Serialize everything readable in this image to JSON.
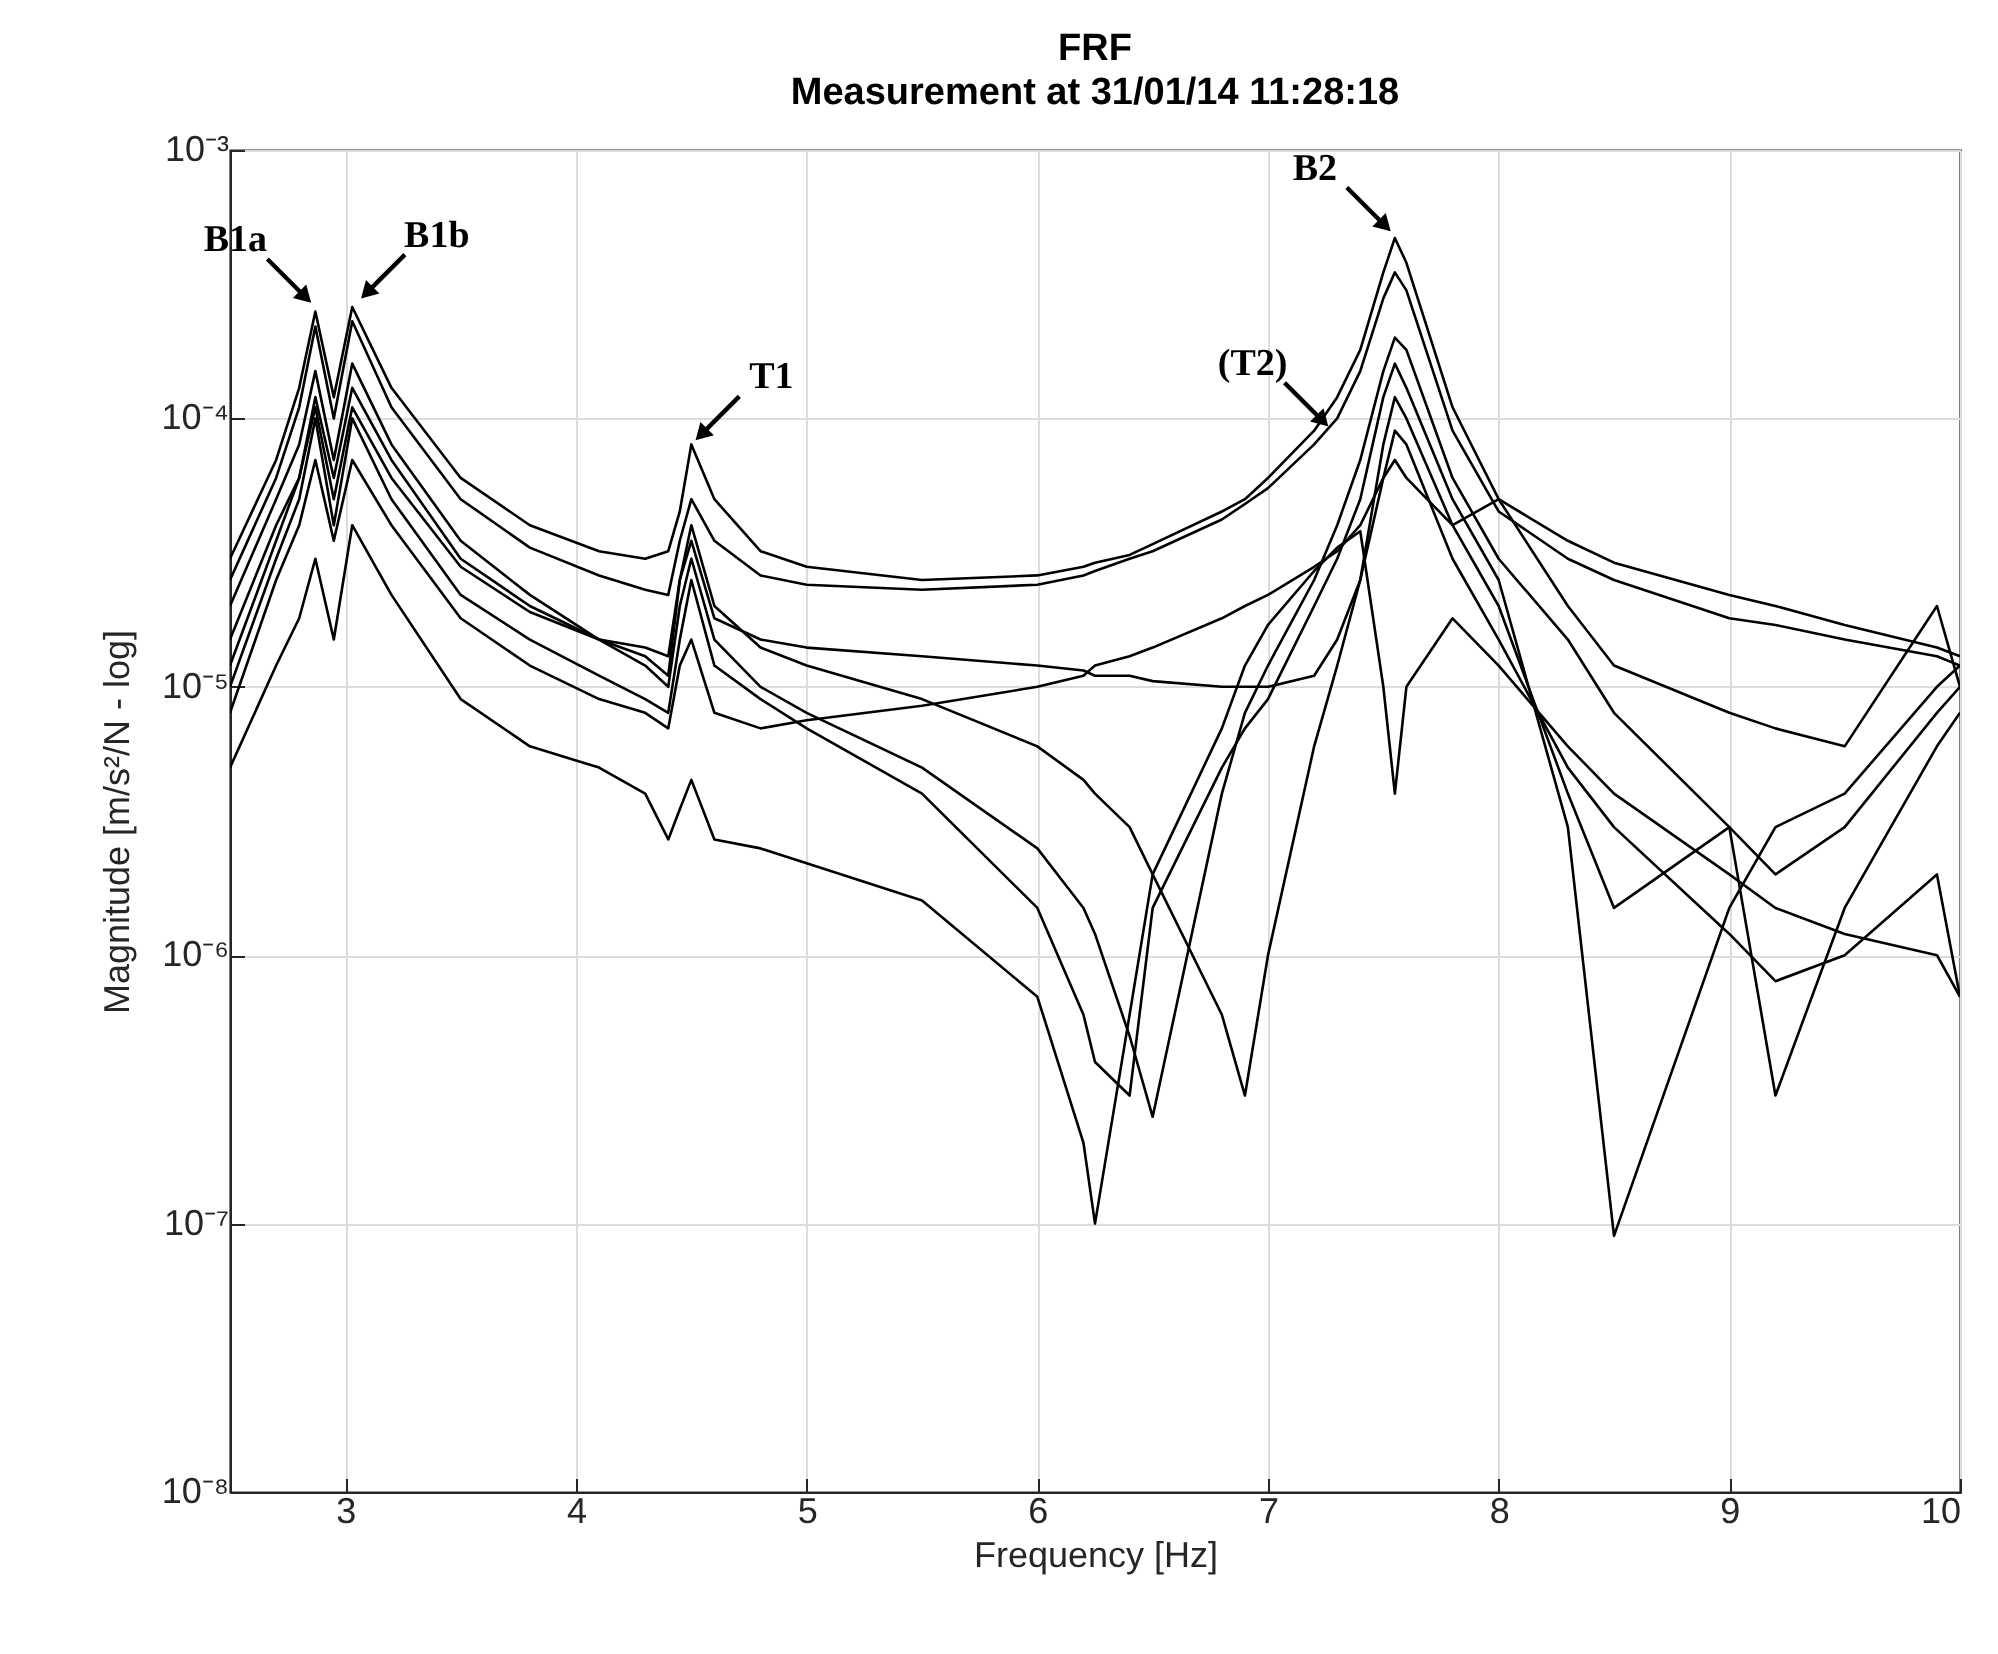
{
  "chart_data": {
    "type": "line",
    "title": "FRF",
    "subtitle": "Measurement at 31/01/14 11:28:18",
    "xlabel": "Frequency [Hz]",
    "ylabel": "Magnitude [m/s²/N - log]",
    "x": [
      2.5,
      2.7,
      2.8,
      2.87,
      2.95,
      3.03,
      3.2,
      3.5,
      3.8,
      4.1,
      4.3,
      4.4,
      4.45,
      4.5,
      4.6,
      4.8,
      5.0,
      5.5,
      6.0,
      6.2,
      6.25,
      6.4,
      6.5,
      6.8,
      6.9,
      7.0,
      7.2,
      7.3,
      7.4,
      7.5,
      7.55,
      7.6,
      7.8,
      8.0,
      8.3,
      8.5,
      9.0,
      9.2,
      9.5,
      9.9,
      10.0
    ],
    "series": [
      {
        "color": "#000000",
        "values": [
          3e-05,
          7e-05,
          0.00013,
          0.00025,
          0.00012,
          0.00026,
          0.00013,
          6e-05,
          4e-05,
          3.2e-05,
          3e-05,
          3.2e-05,
          4.5e-05,
          8e-05,
          5e-05,
          3.2e-05,
          2.8e-05,
          2.5e-05,
          2.6e-05,
          2.8e-05,
          2.9e-05,
          3.1e-05,
          3.4e-05,
          4.5e-05,
          5e-05,
          6e-05,
          9e-05,
          0.00012,
          0.00018,
          0.00035,
          0.00047,
          0.00038,
          0.00011,
          5e-05,
          3.5e-05,
          2.9e-05,
          2.2e-05,
          2e-05,
          1.7e-05,
          1.4e-05,
          1.3e-05
        ]
      },
      {
        "color": "#000000",
        "values": [
          2.5e-05,
          6e-05,
          0.00011,
          0.00022,
          0.0001,
          0.00023,
          0.00011,
          5e-05,
          3.3e-05,
          2.6e-05,
          2.3e-05,
          2.2e-05,
          3.5e-05,
          5e-05,
          3.5e-05,
          2.6e-05,
          2.4e-05,
          2.3e-05,
          2.4e-05,
          2.6e-05,
          2.7e-05,
          3e-05,
          3.2e-05,
          4.2e-05,
          4.8e-05,
          5.5e-05,
          8e-05,
          0.0001,
          0.00015,
          0.00028,
          0.00035,
          0.0003,
          9e-05,
          4.5e-05,
          3e-05,
          2.5e-05,
          1.8e-05,
          1.7e-05,
          1.5e-05,
          1.3e-05,
          1.2e-05
        ]
      },
      {
        "color": "#000000",
        "values": [
          2e-05,
          5e-05,
          8e-05,
          0.00015,
          7e-05,
          0.00016,
          8e-05,
          3.5e-05,
          2.2e-05,
          1.5e-05,
          1.2e-05,
          1e-05,
          2e-05,
          3e-05,
          1.5e-05,
          1e-05,
          8e-06,
          5e-06,
          2.5e-06,
          1.5e-06,
          1.2e-06,
          5e-07,
          2.5e-07,
          4e-06,
          8e-06,
          1.2e-05,
          2.5e-05,
          4e-05,
          7e-05,
          0.00015,
          0.0002,
          0.00018,
          6e-05,
          3e-05,
          1.5e-05,
          8e-06,
          3e-06,
          2e-06,
          3e-06,
          8e-06,
          1e-05
        ]
      },
      {
        "color": "#000000",
        "values": [
          1.5e-05,
          4e-05,
          6e-05,
          0.00012,
          6e-05,
          0.00013,
          7e-05,
          3e-05,
          2e-05,
          1.5e-05,
          1.3e-05,
          1.1e-05,
          2.5e-05,
          4e-05,
          2e-05,
          1.4e-05,
          1.2e-05,
          9e-06,
          6e-06,
          4.5e-06,
          4e-06,
          3e-06,
          2e-06,
          6e-07,
          3e-07,
          1e-06,
          6e-06,
          1.2e-05,
          2.5e-05,
          8e-05,
          0.00012,
          0.0001,
          4e-05,
          2e-05,
          4e-06,
          1.5e-06,
          3e-06,
          3e-07,
          1.5e-06,
          6e-06,
          8e-06
        ]
      },
      {
        "color": "#000000",
        "values": [
          1e-05,
          3e-05,
          5e-05,
          0.0001,
          4e-05,
          0.0001,
          5e-05,
          2.2e-05,
          1.5e-05,
          1.1e-05,
          9e-06,
          8e-06,
          1.5e-05,
          2.5e-05,
          1.2e-05,
          9e-06,
          7e-06,
          4e-06,
          1.5e-06,
          6e-07,
          4e-07,
          3e-07,
          1.5e-06,
          5e-06,
          7e-06,
          9e-06,
          2e-05,
          3e-05,
          5e-05,
          0.00012,
          0.00016,
          0.00013,
          5e-05,
          2.5e-05,
          3e-06,
          9e-08,
          1.5e-06,
          3e-06,
          4e-06,
          1e-05,
          1.2e-05
        ]
      },
      {
        "color": "#000000",
        "values": [
          5e-06,
          1.2e-05,
          1.8e-05,
          3e-05,
          1.5e-05,
          4e-05,
          2.2e-05,
          9e-06,
          6e-06,
          5e-06,
          4e-06,
          2.7e-06,
          3.5e-06,
          4.5e-06,
          2.7e-06,
          2.5e-06,
          2.2e-06,
          1.6e-06,
          7e-07,
          2e-07,
          1e-07,
          6e-07,
          2e-06,
          7e-06,
          1.2e-05,
          1.7e-05,
          2.7e-05,
          3.3e-05,
          3.8e-05,
          1e-05,
          4e-06,
          1e-05,
          1.8e-05,
          1.2e-05,
          6e-06,
          4e-06,
          2e-06,
          1.5e-06,
          1.2e-06,
          1e-06,
          7e-07
        ]
      },
      {
        "color": "#000000",
        "values": [
          8e-06,
          2.5e-05,
          4e-05,
          7e-05,
          3.5e-05,
          7e-05,
          4e-05,
          1.8e-05,
          1.2e-05,
          9e-06,
          8e-06,
          7e-06,
          1.2e-05,
          1.5e-05,
          8e-06,
          7e-06,
          7.5e-06,
          8.5e-06,
          1e-05,
          1.1e-05,
          1.2e-05,
          1.3e-05,
          1.4e-05,
          1.8e-05,
          2e-05,
          2.2e-05,
          2.8e-05,
          3.2e-05,
          4e-05,
          6e-05,
          7e-05,
          6e-05,
          4e-05,
          5e-05,
          2e-05,
          1.2e-05,
          8e-06,
          7e-06,
          6e-06,
          2e-05,
          1e-05
        ]
      },
      {
        "color": "#000000",
        "values": [
          1.2e-05,
          3.5e-05,
          6e-05,
          0.00011,
          5e-05,
          0.00011,
          6e-05,
          2.8e-05,
          1.9e-05,
          1.5e-05,
          1.4e-05,
          1.3e-05,
          2.5e-05,
          3.5e-05,
          1.8e-05,
          1.5e-05,
          1.4e-05,
          1.3e-05,
          1.2e-05,
          1.15e-05,
          1.1e-05,
          1.1e-05,
          1.05e-05,
          1e-05,
          1e-05,
          1e-05,
          1.1e-05,
          1.5e-05,
          2.5e-05,
          6e-05,
          9e-05,
          8e-05,
          3e-05,
          1.5e-05,
          5e-06,
          3e-06,
          1.2e-06,
          8e-07,
          1e-06,
          2e-06,
          7e-07
        ]
      }
    ],
    "xlim": [
      2.5,
      10
    ],
    "xticks": [
      3,
      4,
      5,
      6,
      7,
      8,
      9,
      10
    ],
    "ylim": [
      1e-08,
      0.001
    ],
    "yticks": [
      {
        "value": 1e-08,
        "label": "10⁻⁸"
      },
      {
        "value": 1e-07,
        "label": "10⁻⁷"
      },
      {
        "value": 1e-06,
        "label": "10⁻⁶"
      },
      {
        "value": 1e-05,
        "label": "10⁻⁵"
      },
      {
        "value": 0.0001,
        "label": "10⁻⁴"
      },
      {
        "value": 0.001,
        "label": "10⁻³"
      }
    ],
    "log": "y",
    "grid": true,
    "legend": false,
    "annotations": [
      {
        "text": "B1a",
        "x": 2.87,
        "y": 0.00026
      },
      {
        "text": "B1b",
        "x": 3.05,
        "y": 0.00027
      },
      {
        "text": "(T2)",
        "x": 7.28,
        "y": 9e-05
      },
      {
        "text": "T1",
        "x": 4.5,
        "y": 8e-05
      },
      {
        "text": "B2",
        "x": 7.55,
        "y": 0.00048
      }
    ]
  }
}
